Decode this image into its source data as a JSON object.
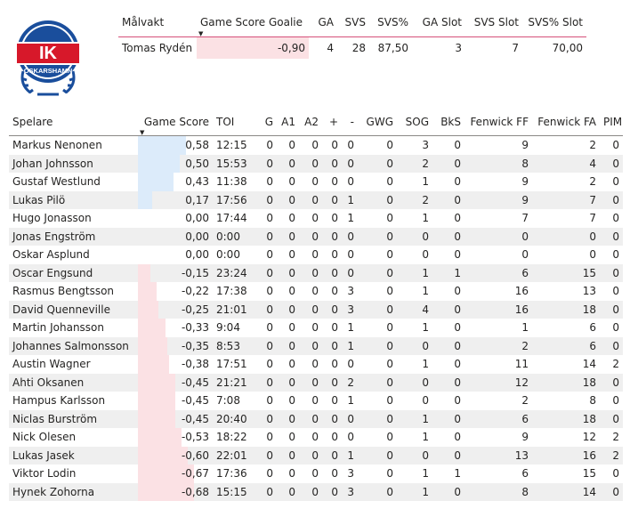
{
  "logo": {
    "text_top": "IK",
    "text_bottom": "OSKARSHAMN",
    "colors": {
      "blue": "#1a4e9c",
      "red": "#d7182a"
    }
  },
  "goalie": {
    "headers": [
      "Målvakt",
      "Game Score Goalie",
      "GA",
      "SVS",
      "SVS%",
      "GA Slot",
      "SVS Slot",
      "SVS% Slot"
    ],
    "row": [
      "Tomas Rydén",
      "-0,90",
      "4",
      "28",
      "87,50",
      "3",
      "7",
      "70,00"
    ],
    "bar_fraction": 1.0
  },
  "skaters": {
    "headers": [
      "Spelare",
      "Game Score",
      "TOI",
      "G",
      "A1",
      "A2",
      "+",
      "-",
      "GWG",
      "SOG",
      "BkS",
      "Fenwick FF",
      "Fenwick FA",
      "PIM"
    ],
    "rows": [
      {
        "cells": [
          "Markus Nenonen",
          "0,58",
          "12:15",
          "0",
          "0",
          "0",
          "0",
          "0",
          "0",
          "3",
          "0",
          "9",
          "2",
          "0"
        ],
        "gs": 0.58
      },
      {
        "cells": [
          "Johan Johnsson",
          "0,50",
          "15:53",
          "0",
          "0",
          "0",
          "0",
          "0",
          "0",
          "2",
          "0",
          "8",
          "4",
          "0"
        ],
        "gs": 0.5
      },
      {
        "cells": [
          "Gustaf Westlund",
          "0,43",
          "11:38",
          "0",
          "0",
          "0",
          "0",
          "0",
          "0",
          "1",
          "0",
          "9",
          "2",
          "0"
        ],
        "gs": 0.43
      },
      {
        "cells": [
          "Lukas Pilö",
          "0,17",
          "17:56",
          "0",
          "0",
          "0",
          "0",
          "1",
          "0",
          "2",
          "0",
          "9",
          "7",
          "0"
        ],
        "gs": 0.17
      },
      {
        "cells": [
          "Hugo Jonasson",
          "0,00",
          "17:44",
          "0",
          "0",
          "0",
          "0",
          "1",
          "0",
          "1",
          "0",
          "7",
          "7",
          "0"
        ],
        "gs": 0.0
      },
      {
        "cells": [
          "Jonas Engström",
          "0,00",
          "0:00",
          "0",
          "0",
          "0",
          "0",
          "0",
          "0",
          "0",
          "0",
          "0",
          "0",
          "0"
        ],
        "gs": 0.0
      },
      {
        "cells": [
          "Oskar Asplund",
          "0,00",
          "0:00",
          "0",
          "0",
          "0",
          "0",
          "0",
          "0",
          "0",
          "0",
          "0",
          "0",
          "0"
        ],
        "gs": 0.0
      },
      {
        "cells": [
          "Oscar Engsund",
          "-0,15",
          "23:24",
          "0",
          "0",
          "0",
          "0",
          "0",
          "0",
          "1",
          "1",
          "6",
          "15",
          "0"
        ],
        "gs": -0.15
      },
      {
        "cells": [
          "Rasmus Bengtsson",
          "-0,22",
          "17:38",
          "0",
          "0",
          "0",
          "0",
          "3",
          "0",
          "1",
          "0",
          "16",
          "13",
          "0"
        ],
        "gs": -0.22
      },
      {
        "cells": [
          "David Quenneville",
          "-0,25",
          "21:01",
          "0",
          "0",
          "0",
          "0",
          "3",
          "0",
          "4",
          "0",
          "16",
          "18",
          "0"
        ],
        "gs": -0.25
      },
      {
        "cells": [
          "Martin Johansson",
          "-0,33",
          "9:04",
          "0",
          "0",
          "0",
          "0",
          "1",
          "0",
          "1",
          "0",
          "1",
          "6",
          "0"
        ],
        "gs": -0.33
      },
      {
        "cells": [
          "Johannes Salmonsson",
          "-0,35",
          "8:53",
          "0",
          "0",
          "0",
          "0",
          "1",
          "0",
          "0",
          "0",
          "2",
          "6",
          "0"
        ],
        "gs": -0.35
      },
      {
        "cells": [
          "Austin Wagner",
          "-0,38",
          "17:51",
          "0",
          "0",
          "0",
          "0",
          "0",
          "0",
          "1",
          "0",
          "11",
          "14",
          "2"
        ],
        "gs": -0.38
      },
      {
        "cells": [
          "Ahti Oksanen",
          "-0,45",
          "21:21",
          "0",
          "0",
          "0",
          "0",
          "2",
          "0",
          "0",
          "0",
          "12",
          "18",
          "0"
        ],
        "gs": -0.45
      },
      {
        "cells": [
          "Hampus Karlsson",
          "-0,45",
          "7:08",
          "0",
          "0",
          "0",
          "0",
          "1",
          "0",
          "0",
          "0",
          "2",
          "8",
          "0"
        ],
        "gs": -0.45
      },
      {
        "cells": [
          "Niclas Burström",
          "-0,45",
          "20:40",
          "0",
          "0",
          "0",
          "0",
          "0",
          "0",
          "1",
          "0",
          "6",
          "18",
          "0"
        ],
        "gs": -0.45
      },
      {
        "cells": [
          "Nick Olesen",
          "-0,53",
          "18:22",
          "0",
          "0",
          "0",
          "0",
          "0",
          "0",
          "1",
          "0",
          "9",
          "12",
          "2"
        ],
        "gs": -0.53
      },
      {
        "cells": [
          "Lukas Jasek",
          "-0,60",
          "22:01",
          "0",
          "0",
          "0",
          "0",
          "1",
          "0",
          "0",
          "0",
          "13",
          "16",
          "2"
        ],
        "gs": -0.6
      },
      {
        "cells": [
          "Viktor Lodin",
          "-0,67",
          "17:36",
          "0",
          "0",
          "0",
          "0",
          "3",
          "0",
          "1",
          "1",
          "6",
          "15",
          "0"
        ],
        "gs": -0.67
      },
      {
        "cells": [
          "Hynek Zohorna",
          "-0,68",
          "15:15",
          "0",
          "0",
          "0",
          "0",
          "3",
          "0",
          "1",
          "0",
          "8",
          "14",
          "0"
        ],
        "gs": -0.68
      }
    ]
  }
}
